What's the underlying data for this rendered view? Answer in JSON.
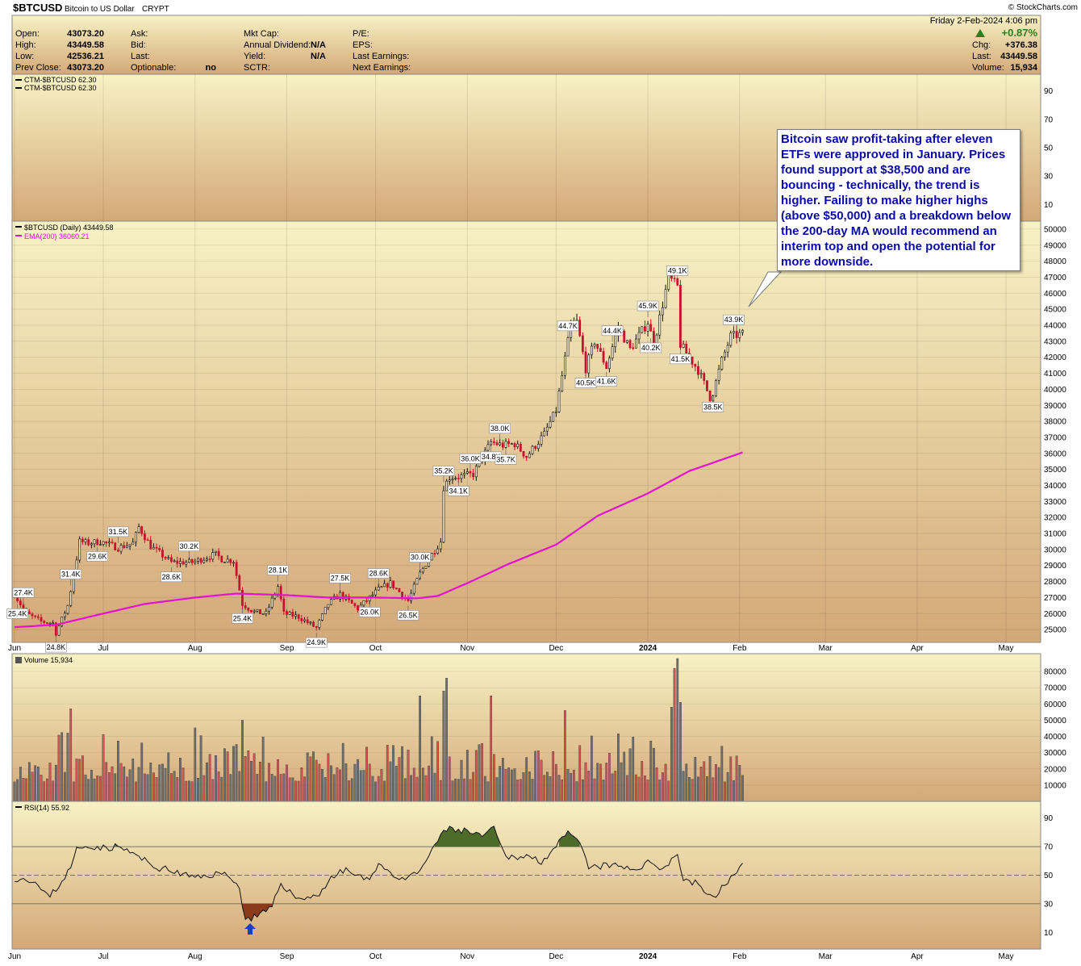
{
  "header": {
    "symbol": "$BTCUSD",
    "name": "Bitcoin to US Dollar",
    "exchange": "CRYPT",
    "brand": "© StockCharts.com",
    "date_line": "Friday  2-Feb-2024  4:06 pm",
    "pct_change": "+0.87%",
    "chg_label": "Chg:",
    "chg_value": "+376.38",
    "last_label": "Last:",
    "last_value": "43449.58",
    "volume_label": "Volume:",
    "volume_value": "15,934",
    "open_label": "Open:",
    "open_value": "43073.20",
    "high_label": "High:",
    "high_value": "43449.58",
    "low_label": "Low:",
    "low_value": "42536.21",
    "prev_label": "Prev Close:",
    "prev_value": "43073.20",
    "ask_label": "Ask:",
    "bid_label": "Bid:",
    "last2_label": "Last:",
    "optionable_label": "Optionable:",
    "optionable_value": "no",
    "mktcap_label": "Mkt Cap:",
    "div_label": "Annual Dividend:",
    "div_value": "N/A",
    "yield_label": "Yield:",
    "yield_value": "N/A",
    "sctr_label": "SCTR:",
    "pe_label": "P/E:",
    "eps_label": "EPS:",
    "last_earn_label": "Last Earnings:",
    "next_earn_label": "Next Earnings:"
  },
  "ctm_panel": {
    "legend1": "CTM-$BTCUSD 62.30",
    "legend2": "CTM-$BTCUSD 62.30",
    "ticks": [
      90,
      70,
      50,
      30,
      10
    ]
  },
  "annotation": {
    "text": "Bitcoin saw profit-taking after eleven ETFs were approved in January. Prices found support at $38,500 and are bouncing - technically, the trend is higher. Failing to make higher highs (above $50,000) and a breakdown below the 200-day MA would recommend an interim top and open the potential for more downside."
  },
  "colors": {
    "up": "#111111",
    "down": "#c8102e",
    "ema": "#e60fd2",
    "rsi_over": "#4e6b2a",
    "rsi_under": "#8b3a1c",
    "arrow": "#1a3ccc",
    "grad_top": "#f7f2c4",
    "grad_bottom": "#d4a878"
  },
  "chart_data": [
    {
      "type": "candlestick",
      "legend_price": "$BTCUSD (Daily) 43449.58",
      "legend_ema": "EMA(200) 36060.21",
      "ylim": [
        24200,
        50500
      ],
      "y_ticks": [
        25000,
        26000,
        27000,
        28000,
        29000,
        30000,
        31000,
        32000,
        33000,
        34000,
        35000,
        36000,
        37000,
        38000,
        39000,
        40000,
        41000,
        42000,
        43000,
        44000,
        45000,
        46000,
        47000,
        48000,
        49000,
        50000
      ],
      "x_months": [
        "Jun",
        "Jul",
        "Aug",
        "Sep",
        "Oct",
        "Nov",
        "Dec",
        "2024",
        "Feb",
        "Mar",
        "Apr",
        "May"
      ],
      "price_path": [
        [
          "2023-06-01",
          27200
        ],
        [
          "2023-06-05",
          26000
        ],
        [
          "2023-06-10",
          25500
        ],
        [
          "2023-06-14",
          25400
        ],
        [
          "2023-06-15",
          24800
        ],
        [
          "2023-06-19",
          26500
        ],
        [
          "2023-06-21",
          28400
        ],
        [
          "2023-06-23",
          30500
        ],
        [
          "2023-06-26",
          30400
        ],
        [
          "2023-06-30",
          30500
        ],
        [
          "2023-07-06",
          30100
        ],
        [
          "2023-07-11",
          30400
        ],
        [
          "2023-07-13",
          31400
        ],
        [
          "2023-07-17",
          30200
        ],
        [
          "2023-07-24",
          29200
        ],
        [
          "2023-07-31",
          29200
        ],
        [
          "2023-08-08",
          29700
        ],
        [
          "2023-08-10",
          29400
        ],
        [
          "2023-08-14",
          29300
        ],
        [
          "2023-08-17",
          26600
        ],
        [
          "2023-08-21",
          26100
        ],
        [
          "2023-08-25",
          26000
        ],
        [
          "2023-08-29",
          27700
        ],
        [
          "2023-08-31",
          26000
        ],
        [
          "2023-09-05",
          25800
        ],
        [
          "2023-09-11",
          25100
        ],
        [
          "2023-09-15",
          26600
        ],
        [
          "2023-09-19",
          27200
        ],
        [
          "2023-09-25",
          26300
        ],
        [
          "2023-09-29",
          27000
        ],
        [
          "2023-10-02",
          27500
        ],
        [
          "2023-10-06",
          27900
        ],
        [
          "2023-10-12",
          26800
        ],
        [
          "2023-10-16",
          28500
        ],
        [
          "2023-10-20",
          29700
        ],
        [
          "2023-10-23",
          30500
        ],
        [
          "2023-10-24",
          33900
        ],
        [
          "2023-10-26",
          34500
        ],
        [
          "2023-10-31",
          34600
        ],
        [
          "2023-11-03",
          34700
        ],
        [
          "2023-11-09",
          36700
        ],
        [
          "2023-11-13",
          36500
        ],
        [
          "2023-11-17",
          36600
        ],
        [
          "2023-11-21",
          35800
        ],
        [
          "2023-11-27",
          37200
        ],
        [
          "2023-12-01",
          38700
        ],
        [
          "2023-12-04",
          41900
        ],
        [
          "2023-12-06",
          44000
        ],
        [
          "2023-12-08",
          44200
        ],
        [
          "2023-12-11",
          41300
        ],
        [
          "2023-12-14",
          43000
        ],
        [
          "2023-12-18",
          41400
        ],
        [
          "2023-12-22",
          43900
        ],
        [
          "2023-12-26",
          42500
        ],
        [
          "2024-01-01",
          44200
        ],
        [
          "2024-01-03",
          42800
        ],
        [
          "2024-01-08",
          47000
        ],
        [
          "2024-01-11",
          46400
        ],
        [
          "2024-01-12",
          42800
        ],
        [
          "2024-01-18",
          41200
        ],
        [
          "2024-01-22",
          39500
        ],
        [
          "2024-01-23",
          39800
        ],
        [
          "2024-01-26",
          41800
        ],
        [
          "2024-01-29",
          43300
        ],
        [
          "2024-02-02",
          43450
        ]
      ],
      "peak_labels": [
        {
          "date": "2023-06-04",
          "value": "27.4K"
        },
        {
          "date": "2023-06-20",
          "value": "31.4K"
        },
        {
          "date": "2023-07-06",
          "value": "31.5K"
        },
        {
          "date": "2023-07-30",
          "value": "30.2K"
        },
        {
          "date": "2023-08-29",
          "value": "28.1K"
        },
        {
          "date": "2023-09-19",
          "value": "27.5K"
        },
        {
          "date": "2023-10-02",
          "value": "28.6K"
        },
        {
          "date": "2023-10-16",
          "value": "30.0K"
        },
        {
          "date": "2023-10-24",
          "value": "35.2K"
        },
        {
          "date": "2023-11-02",
          "value": "36.0K"
        },
        {
          "date": "2023-11-12",
          "value": "38.0K"
        },
        {
          "date": "2023-12-05",
          "value": "44.7K"
        },
        {
          "date": "2023-12-20",
          "value": "44.4K"
        },
        {
          "date": "2024-01-01",
          "value": "45.9K"
        },
        {
          "date": "2024-01-11",
          "value": "49.1K"
        },
        {
          "date": "2024-01-30",
          "value": "43.9K"
        }
      ],
      "trough_labels": [
        {
          "date": "2023-06-02",
          "value": "25.4K"
        },
        {
          "date": "2023-06-15",
          "value": "24.8K"
        },
        {
          "date": "2023-06-29",
          "value": "29.6K"
        },
        {
          "date": "2023-07-24",
          "value": "28.6K"
        },
        {
          "date": "2023-08-17",
          "value": "25.4K"
        },
        {
          "date": "2023-09-11",
          "value": "24.9K"
        },
        {
          "date": "2023-09-29",
          "value": "26.0K"
        },
        {
          "date": "2023-10-12",
          "value": "26.5K"
        },
        {
          "date": "2023-10-29",
          "value": "34.1K"
        },
        {
          "date": "2023-11-09",
          "value": "34.8K"
        },
        {
          "date": "2023-11-14",
          "value": "35.7K"
        },
        {
          "date": "2023-12-11",
          "value": "40.5K"
        },
        {
          "date": "2023-12-18",
          "value": "41.6K"
        },
        {
          "date": "2024-01-02",
          "value": "40.2K"
        },
        {
          "date": "2024-01-12",
          "value": "41.5K"
        },
        {
          "date": "2024-01-23",
          "value": "38.5K"
        }
      ],
      "ema200_path": [
        [
          "2023-06-01",
          25150
        ],
        [
          "2023-06-15",
          25300
        ],
        [
          "2023-07-01",
          26000
        ],
        [
          "2023-07-15",
          26600
        ],
        [
          "2023-08-01",
          27000
        ],
        [
          "2023-08-15",
          27250
        ],
        [
          "2023-09-01",
          27150
        ],
        [
          "2023-09-15",
          27000
        ],
        [
          "2023-10-01",
          27000
        ],
        [
          "2023-10-15",
          26950
        ],
        [
          "2023-10-22",
          27100
        ],
        [
          "2023-11-01",
          27900
        ],
        [
          "2023-11-15",
          29100
        ],
        [
          "2023-12-01",
          30300
        ],
        [
          "2023-12-15",
          32100
        ],
        [
          "2024-01-01",
          33500
        ],
        [
          "2024-01-15",
          34900
        ],
        [
          "2024-02-02",
          36060
        ]
      ]
    },
    {
      "type": "bar",
      "legend": "Volume 15,934",
      "ylim": [
        0,
        88000
      ],
      "y_ticks": [
        10000,
        20000,
        30000,
        40000,
        50000,
        60000,
        70000,
        80000
      ],
      "notable_bars": [
        {
          "date": "2023-06-20",
          "value": 57000
        },
        {
          "date": "2023-08-17",
          "value": 50000
        },
        {
          "date": "2023-10-16",
          "value": 65000
        },
        {
          "date": "2023-10-24",
          "value": 68000
        },
        {
          "date": "2023-10-25",
          "value": 76000
        },
        {
          "date": "2023-11-09",
          "value": 65000
        },
        {
          "date": "2023-12-04",
          "value": 56000
        },
        {
          "date": "2024-01-09",
          "value": 58000
        },
        {
          "date": "2024-01-10",
          "value": 82000
        },
        {
          "date": "2024-01-11",
          "value": 88000
        },
        {
          "date": "2024-01-12",
          "value": 61000
        },
        {
          "date": "2024-02-02",
          "value": 16000
        }
      ]
    },
    {
      "type": "line",
      "legend": "RSI(14) 55.92",
      "ylim": [
        0,
        100
      ],
      "y_ticks": [
        90,
        70,
        50,
        30,
        10
      ],
      "overbought": 70,
      "oversold": 30,
      "rsi_path": [
        [
          "2023-06-01",
          48
        ],
        [
          "2023-06-07",
          47
        ],
        [
          "2023-06-12",
          35
        ],
        [
          "2023-06-15",
          40
        ],
        [
          "2023-06-20",
          55
        ],
        [
          "2023-06-22",
          68
        ],
        [
          "2023-06-26",
          71
        ],
        [
          "2023-07-01",
          69
        ],
        [
          "2023-07-06",
          70
        ],
        [
          "2023-07-12",
          64
        ],
        [
          "2023-07-18",
          56
        ],
        [
          "2023-07-24",
          53
        ],
        [
          "2023-08-01",
          48
        ],
        [
          "2023-08-08",
          51
        ],
        [
          "2023-08-13",
          50
        ],
        [
          "2023-08-16",
          40
        ],
        [
          "2023-08-18",
          19
        ],
        [
          "2023-08-23",
          22
        ],
        [
          "2023-08-27",
          27
        ],
        [
          "2023-08-30",
          45
        ],
        [
          "2023-09-04",
          34
        ],
        [
          "2023-09-11",
          35
        ],
        [
          "2023-09-16",
          48
        ],
        [
          "2023-09-21",
          54
        ],
        [
          "2023-09-28",
          46
        ],
        [
          "2023-10-02",
          58
        ],
        [
          "2023-10-10",
          46
        ],
        [
          "2023-10-15",
          51
        ],
        [
          "2023-10-20",
          66
        ],
        [
          "2023-10-24",
          82
        ],
        [
          "2023-11-01",
          81
        ],
        [
          "2023-11-05",
          77
        ],
        [
          "2023-11-10",
          82
        ],
        [
          "2023-11-14",
          62
        ],
        [
          "2023-11-20",
          64
        ],
        [
          "2023-11-26",
          60
        ],
        [
          "2023-12-01",
          70
        ],
        [
          "2023-12-05",
          79
        ],
        [
          "2023-12-09",
          72
        ],
        [
          "2023-12-12",
          55
        ],
        [
          "2023-12-19",
          57
        ],
        [
          "2023-12-27",
          54
        ],
        [
          "2024-01-02",
          59
        ],
        [
          "2024-01-06",
          55
        ],
        [
          "2024-01-11",
          65
        ],
        [
          "2024-01-13",
          47
        ],
        [
          "2024-01-18",
          44
        ],
        [
          "2024-01-23",
          33
        ],
        [
          "2024-01-27",
          44
        ],
        [
          "2024-02-02",
          56
        ]
      ]
    }
  ]
}
